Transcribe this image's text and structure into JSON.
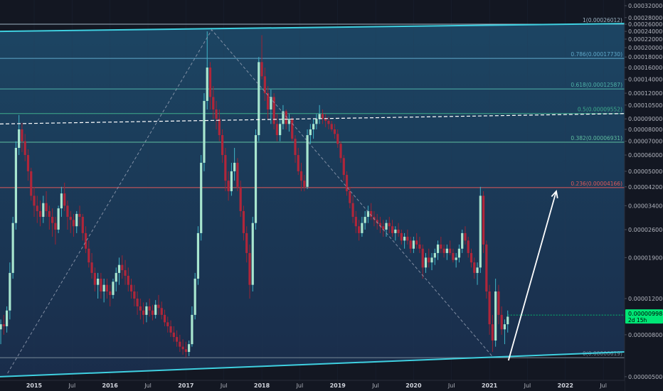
{
  "chart_data": {
    "type": "candlestick",
    "scale": "log",
    "ylim": [
      4.8e-06,
      0.00032
    ],
    "y_ticks": [
      "0.00032000",
      "0.00028000",
      "0.00026000",
      "0.00024000",
      "0.00022000",
      "0.00020000",
      "0.00018000",
      "0.00016000",
      "0.00014000",
      "0.00012000",
      "0.00010500",
      "0.00009000",
      "0.00008000",
      "0.00007000",
      "0.00006000",
      "0.00005000",
      "0.00004200",
      "0.00003400",
      "0.00002600",
      "0.00001900",
      "0.00001200",
      "0.00000800",
      "0.00000500"
    ],
    "x_ticks": [
      {
        "label": "2015",
        "t": 2015.0,
        "year": true
      },
      {
        "label": "Jul",
        "t": 2015.5,
        "year": false
      },
      {
        "label": "2016",
        "t": 2016.0,
        "year": true
      },
      {
        "label": "Jul",
        "t": 2016.5,
        "year": false
      },
      {
        "label": "2017",
        "t": 2017.0,
        "year": true
      },
      {
        "label": "Jul",
        "t": 2017.5,
        "year": false
      },
      {
        "label": "2018",
        "t": 2018.0,
        "year": true
      },
      {
        "label": "Jul",
        "t": 2018.5,
        "year": false
      },
      {
        "label": "2019",
        "t": 2019.0,
        "year": true
      },
      {
        "label": "Jul",
        "t": 2019.5,
        "year": false
      },
      {
        "label": "2020",
        "t": 2020.0,
        "year": true
      },
      {
        "label": "Jul",
        "t": 2020.5,
        "year": false
      },
      {
        "label": "2021",
        "t": 2021.0,
        "year": true
      },
      {
        "label": "Jul",
        "t": 2021.5,
        "year": false
      },
      {
        "label": "2022",
        "t": 2022.0,
        "year": true
      },
      {
        "label": "Jul",
        "t": 2022.5,
        "year": false
      }
    ],
    "xlim": [
      2014.55,
      2022.78
    ],
    "fib_levels": [
      {
        "label": "1(0.00026012)",
        "value": 0.00026012,
        "color": "#9fb4c4"
      },
      {
        "label": "0.786(0.00017730)",
        "value": 0.0001773,
        "color": "#5fa8c9"
      },
      {
        "label": "0.618(0.00012587)",
        "value": 0.00012587,
        "color": "#4fb3a8"
      },
      {
        "label": "0.5(0.00009552)",
        "value": 9.552e-05,
        "color": "#3fae8c"
      },
      {
        "label": "0.382(0.00006931)",
        "value": 6.931e-05,
        "color": "#5fbf9f"
      },
      {
        "label": "0.236(0.00004166)",
        "value": 4.166e-05,
        "color": "#e05a5a"
      },
      {
        "label": "0(0.00000619)",
        "value": 6.19e-06,
        "color": "#7a8a99"
      }
    ],
    "price_badge": {
      "value": "0.00000998",
      "sub": "2d 15h",
      "color": "#00e676"
    },
    "candles": [
      [
        2014.56,
        8.5e-06,
        9.5e-06,
        7.2e-06,
        9e-06
      ],
      [
        2014.6,
        9e-06,
        1e-05,
        8e-06,
        8.8e-06
      ],
      [
        2014.64,
        8.8e-06,
        1.1e-05,
        8.2e-06,
        1.05e-05
      ],
      [
        2014.68,
        1.05e-05,
        1.8e-05,
        9.5e-06,
        1.6e-05
      ],
      [
        2014.72,
        1.6e-05,
        3e-05,
        1.5e-05,
        2.8e-05
      ],
      [
        2014.76,
        2.8e-05,
        7e-05,
        2.6e-05,
        6.5e-05
      ],
      [
        2014.8,
        6.5e-05,
        9.4e-05,
        6e-05,
        8e-05
      ],
      [
        2014.84,
        8e-05,
        8.6e-05,
        6.2e-05,
        7e-05
      ],
      [
        2014.88,
        7e-05,
        7.6e-05,
        5.6e-05,
        6e-05
      ],
      [
        2014.92,
        6e-05,
        6.4e-05,
        4.5e-05,
        5e-05
      ],
      [
        2014.96,
        5e-05,
        5.2e-05,
        3.6e-05,
        3.8e-05
      ],
      [
        2015.0,
        3.8e-05,
        4.2e-05,
        3e-05,
        3.4e-05
      ],
      [
        2015.04,
        3.4e-05,
        3.8e-05,
        2.8e-05,
        3.2e-05
      ],
      [
        2015.08,
        3.2e-05,
        3.6e-05,
        2.7e-05,
        3e-05
      ],
      [
        2015.12,
        3e-05,
        3.8e-05,
        2.8e-05,
        3.5e-05
      ],
      [
        2015.16,
        3.5e-05,
        4e-05,
        3e-05,
        3.2e-05
      ],
      [
        2015.2,
        3.2e-05,
        3.4e-05,
        2.6e-05,
        3e-05
      ],
      [
        2015.24,
        3e-05,
        3.3e-05,
        2.4e-05,
        2.8e-05
      ],
      [
        2015.28,
        2.8e-05,
        3e-05,
        2.2e-05,
        2.6e-05
      ],
      [
        2015.32,
        2.6e-05,
        3.4e-05,
        2.5e-05,
        3.3e-05
      ],
      [
        2015.36,
        3.3e-05,
        4.2e-05,
        3e-05,
        3.9e-05
      ],
      [
        2015.4,
        3.9e-05,
        4.4e-05,
        3.2e-05,
        3.4e-05
      ],
      [
        2015.44,
        3.4e-05,
        3.6e-05,
        2.6e-05,
        3e-05
      ],
      [
        2015.48,
        3e-05,
        3.2e-05,
        2.5e-05,
        2.9e-05
      ],
      [
        2015.52,
        2.9e-05,
        3.1e-05,
        2.4e-05,
        2.7e-05
      ],
      [
        2015.56,
        2.7e-05,
        3.2e-05,
        2.5e-05,
        3.1e-05
      ],
      [
        2015.6,
        3.1e-05,
        3.4e-05,
        2.7e-05,
        3e-05
      ],
      [
        2015.64,
        3e-05,
        3.1e-05,
        2.3e-05,
        2.5e-05
      ],
      [
        2015.68,
        2.5e-05,
        2.7e-05,
        2e-05,
        2.1e-05
      ],
      [
        2015.72,
        2.1e-05,
        2.3e-05,
        1.7e-05,
        1.8e-05
      ],
      [
        2015.76,
        1.8e-05,
        2e-05,
        1.5e-05,
        1.6e-05
      ],
      [
        2015.8,
        1.6e-05,
        1.7e-05,
        1.3e-05,
        1.4e-05
      ],
      [
        2015.84,
        1.4e-05,
        1.6e-05,
        1.2e-05,
        1.5e-05
      ],
      [
        2015.88,
        1.5e-05,
        1.6e-05,
        1.2e-05,
        1.3e-05
      ],
      [
        2015.92,
        1.3e-05,
        1.5e-05,
        1.15e-05,
        1.4e-05
      ],
      [
        2015.96,
        1.4e-05,
        1.5e-05,
        1.2e-05,
        1.3e-05
      ],
      [
        2016.0,
        1.3e-05,
        1.4e-05,
        1.1e-05,
        1.25e-05
      ],
      [
        2016.04,
        1.25e-05,
        1.5e-05,
        1.2e-05,
        1.45e-05
      ],
      [
        2016.08,
        1.45e-05,
        1.7e-05,
        1.3e-05,
        1.6e-05
      ],
      [
        2016.12,
        1.6e-05,
        1.9e-05,
        1.4e-05,
        1.75e-05
      ],
      [
        2016.16,
        1.75e-05,
        1.95e-05,
        1.5e-05,
        1.65e-05
      ],
      [
        2016.2,
        1.65e-05,
        1.85e-05,
        1.4e-05,
        1.55e-05
      ],
      [
        2016.24,
        1.55e-05,
        1.7e-05,
        1.3e-05,
        1.4e-05
      ],
      [
        2016.28,
        1.4e-05,
        1.5e-05,
        1.2e-05,
        1.3e-05
      ],
      [
        2016.32,
        1.3e-05,
        1.4e-05,
        1.1e-05,
        1.2e-05
      ],
      [
        2016.36,
        1.2e-05,
        1.3e-05,
        1e-05,
        1.1e-05
      ],
      [
        2016.4,
        1.1e-05,
        1.2e-05,
        9.5e-06,
        1.05e-05
      ],
      [
        2016.44,
        1.05e-05,
        1.15e-05,
        9e-06,
        1e-05
      ],
      [
        2016.48,
        1e-05,
        1.15e-05,
        9.2e-06,
        1.1e-05
      ],
      [
        2016.52,
        1.1e-05,
        1.2e-05,
        9.8e-06,
        1.05e-05
      ],
      [
        2016.56,
        1.05e-05,
        1.12e-05,
        9.4e-06,
        1e-05
      ],
      [
        2016.6,
        1e-05,
        1.18e-05,
        9.6e-06,
        1.12e-05
      ],
      [
        2016.64,
        1.12e-05,
        1.25e-05,
        1e-05,
        1.08e-05
      ],
      [
        2016.68,
        1.08e-05,
        1.16e-05,
        9.5e-06,
        1e-05
      ],
      [
        2016.72,
        1e-05,
        1.06e-05,
        8.8e-06,
        9.2e-06
      ],
      [
        2016.76,
        9.2e-06,
        9.8e-06,
        8.2e-06,
        8.8e-06
      ],
      [
        2016.8,
        8.8e-06,
        9.4e-06,
        7.8e-06,
        8.2e-06
      ],
      [
        2016.84,
        8.2e-06,
        8.8e-06,
        7.4e-06,
        7.8e-06
      ],
      [
        2016.88,
        7.8e-06,
        8.4e-06,
        7e-06,
        7.4e-06
      ],
      [
        2016.92,
        7.4e-06,
        8e-06,
        6.6e-06,
        7e-06
      ],
      [
        2016.96,
        7e-06,
        7.6e-06,
        6.4e-06,
        6.8e-06
      ],
      [
        2017.0,
        6.8e-06,
        7.4e-06,
        6.2e-06,
        6.6e-06
      ],
      [
        2017.04,
        6.6e-06,
        7.5e-06,
        6.3e-06,
        7.2e-06
      ],
      [
        2017.08,
        7.2e-06,
        1.1e-05,
        7e-06,
        1e-05
      ],
      [
        2017.12,
        1e-05,
        1.6e-05,
        9.5e-06,
        1.5e-05
      ],
      [
        2017.16,
        1.5e-05,
        2.7e-05,
        1.4e-05,
        2.5e-05
      ],
      [
        2017.2,
        2.5e-05,
        6e-05,
        2.3e-05,
        5.5e-05
      ],
      [
        2017.24,
        5.5e-05,
        0.00012,
        5e-05,
        0.00011
      ],
      [
        2017.28,
        0.00011,
        0.00024,
        0.0001,
        0.00016
      ],
      [
        2017.32,
        0.00016,
        0.00017,
        0.0001,
        0.000115
      ],
      [
        2017.36,
        0.000115,
        0.00013,
        9e-05,
        0.0001
      ],
      [
        2017.4,
        0.0001,
        0.00011,
        8e-05,
        9e-05
      ],
      [
        2017.44,
        9e-05,
        0.0001,
        7e-05,
        7.5e-05
      ],
      [
        2017.48,
        7.5e-05,
        8e-05,
        5.5e-05,
        6e-05
      ],
      [
        2017.52,
        6e-05,
        6.5e-05,
        4e-05,
        4.5e-05
      ],
      [
        2017.56,
        4.5e-05,
        5e-05,
        3.6e-05,
        4e-05
      ],
      [
        2017.6,
        4e-05,
        5.5e-05,
        3.8e-05,
        5e-05
      ],
      [
        2017.64,
        5e-05,
        6.5e-05,
        4.5e-05,
        5.5e-05
      ],
      [
        2017.68,
        5.5e-05,
        5.8e-05,
        4e-05,
        4.2e-05
      ],
      [
        2017.72,
        4.2e-05,
        4.5e-05,
        3e-05,
        3.2e-05
      ],
      [
        2017.76,
        3.2e-05,
        3.4e-05,
        2.3e-05,
        2.5e-05
      ],
      [
        2017.8,
        2.5e-05,
        2.7e-05,
        1.8e-05,
        2e-05
      ],
      [
        2017.84,
        2e-05,
        2.2e-05,
        1.2e-05,
        1.4e-05
      ],
      [
        2017.88,
        1.4e-05,
        3e-05,
        1.3e-05,
        2.8e-05
      ],
      [
        2017.92,
        2.8e-05,
        8e-05,
        2.6e-05,
        7.5e-05
      ],
      [
        2017.96,
        7.5e-05,
        0.00018,
        7e-05,
        0.00017
      ],
      [
        2018.0,
        0.00017,
        0.00023,
        0.00014,
        0.000145
      ],
      [
        2018.04,
        0.000145,
        0.00016,
        0.00011,
        0.00012
      ],
      [
        2018.08,
        0.00012,
        0.00013,
        9e-05,
        0.0001
      ],
      [
        2018.12,
        0.0001,
        0.000125,
        8.5e-05,
        0.000115
      ],
      [
        2018.16,
        0.000115,
        0.00012,
        8e-05,
        8.5e-05
      ],
      [
        2018.2,
        8.5e-05,
        9.5e-05,
        7e-05,
        7.5e-05
      ],
      [
        2018.24,
        7.5e-05,
        9e-05,
        7e-05,
        8.5e-05
      ],
      [
        2018.28,
        8.5e-05,
        0.000105,
        8e-05,
        9.8e-05
      ],
      [
        2018.32,
        9.8e-05,
        0.0001,
        8e-05,
        8.5e-05
      ],
      [
        2018.36,
        8.5e-05,
        9.5e-05,
        7.8e-05,
        9e-05
      ],
      [
        2018.4,
        9e-05,
        9.2e-05,
        7e-05,
        7.2e-05
      ],
      [
        2018.44,
        7.2e-05,
        7.5e-05,
        5.5e-05,
        6e-05
      ],
      [
        2018.48,
        6e-05,
        6.5e-05,
        4.8e-05,
        5e-05
      ],
      [
        2018.52,
        5e-05,
        5.5e-05,
        4e-05,
        4.5e-05
      ],
      [
        2018.56,
        4.5e-05,
        4.8e-05,
        4e-05,
        4.2e-05
      ],
      [
        2018.6,
        4.2e-05,
        8e-05,
        4.1e-05,
        7.5e-05
      ],
      [
        2018.64,
        7.5e-05,
        8.5e-05,
        6.8e-05,
        8e-05
      ],
      [
        2018.68,
        8e-05,
        9e-05,
        7.2e-05,
        8.5e-05
      ],
      [
        2018.72,
        8.5e-05,
        9.5e-05,
        8e-05,
        9e-05
      ],
      [
        2018.76,
        9e-05,
        0.000105,
        8.5e-05,
        9.5e-05
      ],
      [
        2018.8,
        9.5e-05,
        0.0001,
        8.5e-05,
        9e-05
      ],
      [
        2018.84,
        9e-05,
        9.5e-05,
        8.2e-05,
        8.8e-05
      ],
      [
        2018.88,
        8.8e-05,
        9.2e-05,
        8e-05,
        8.5e-05
      ],
      [
        2018.92,
        8.5e-05,
        8.8e-05,
        7.8e-05,
        8e-05
      ],
      [
        2018.96,
        8e-05,
        8.5e-05,
        7.2e-05,
        7.6e-05
      ],
      [
        2019.0,
        7.6e-05,
        8e-05,
        6.5e-05,
        6.8e-05
      ],
      [
        2019.04,
        6.8e-05,
        7e-05,
        5.5e-05,
        5.8e-05
      ],
      [
        2019.08,
        5.8e-05,
        6e-05,
        4.5e-05,
        4.8e-05
      ],
      [
        2019.12,
        4.8e-05,
        5e-05,
        3.8e-05,
        4e-05
      ],
      [
        2019.16,
        4e-05,
        4.2e-05,
        3.3e-05,
        3.5e-05
      ],
      [
        2019.2,
        3.5e-05,
        3.8e-05,
        2.8e-05,
        3e-05
      ],
      [
        2019.24,
        3e-05,
        3.2e-05,
        2.5e-05,
        2.7e-05
      ],
      [
        2019.28,
        2.7e-05,
        2.9e-05,
        2.3e-05,
        2.5e-05
      ],
      [
        2019.32,
        2.5e-05,
        3e-05,
        2.4e-05,
        2.8e-05
      ],
      [
        2019.36,
        2.8e-05,
        3.2e-05,
        2.6e-05,
        3e-05
      ],
      [
        2019.4,
        3e-05,
        3.4e-05,
        2.8e-05,
        3.2e-05
      ],
      [
        2019.44,
        3.2e-05,
        3.5e-05,
        2.9e-05,
        3e-05
      ],
      [
        2019.48,
        3e-05,
        3.2e-05,
        2.7e-05,
        2.9e-05
      ],
      [
        2019.52,
        2.9e-05,
        3.1e-05,
        2.6e-05,
        2.8e-05
      ],
      [
        2019.56,
        2.8e-05,
        3e-05,
        2.5e-05,
        2.7e-05
      ],
      [
        2019.6,
        2.7e-05,
        2.9e-05,
        2.4e-05,
        2.6e-05
      ],
      [
        2019.64,
        2.6e-05,
        2.9e-05,
        2.4e-05,
        2.8e-05
      ],
      [
        2019.68,
        2.8e-05,
        3e-05,
        2.5e-05,
        2.7e-05
      ],
      [
        2019.72,
        2.7e-05,
        2.9e-05,
        2.4e-05,
        2.5e-05
      ],
      [
        2019.76,
        2.5e-05,
        2.7e-05,
        2.3e-05,
        2.6e-05
      ],
      [
        2019.8,
        2.6e-05,
        2.8e-05,
        2.4e-05,
        2.5e-05
      ],
      [
        2019.84,
        2.5e-05,
        2.6e-05,
        2.2e-05,
        2.3e-05
      ],
      [
        2019.88,
        2.3e-05,
        2.5e-05,
        2.1e-05,
        2.4e-05
      ],
      [
        2019.92,
        2.4e-05,
        2.6e-05,
        2.2e-05,
        2.3e-05
      ],
      [
        2019.96,
        2.3e-05,
        2.4e-05,
        2e-05,
        2.1e-05
      ],
      [
        2020.0,
        2.1e-05,
        2.4e-05,
        2e-05,
        2.3e-05
      ],
      [
        2020.04,
        2.3e-05,
        2.5e-05,
        2.1e-05,
        2.2e-05
      ],
      [
        2020.08,
        2.2e-05,
        2.4e-05,
        2e-05,
        2.1e-05
      ],
      [
        2020.12,
        2.1e-05,
        2.2e-05,
        1.5e-05,
        1.7e-05
      ],
      [
        2020.16,
        1.7e-05,
        2e-05,
        1.6e-05,
        1.9e-05
      ],
      [
        2020.2,
        1.9e-05,
        2.1e-05,
        1.7e-05,
        1.8e-05
      ],
      [
        2020.24,
        1.8e-05,
        2e-05,
        1.65e-05,
        1.9e-05
      ],
      [
        2020.28,
        1.9e-05,
        2.1e-05,
        1.75e-05,
        2e-05
      ],
      [
        2020.32,
        2e-05,
        2.3e-05,
        1.85e-05,
        2.2e-05
      ],
      [
        2020.36,
        2.2e-05,
        2.4e-05,
        2e-05,
        2.1e-05
      ],
      [
        2020.4,
        2.1e-05,
        2.2e-05,
        1.9e-05,
        2e-05
      ],
      [
        2020.44,
        2e-05,
        2.2e-05,
        1.85e-05,
        2.1e-05
      ],
      [
        2020.48,
        2.1e-05,
        2.3e-05,
        1.95e-05,
        2e-05
      ],
      [
        2020.52,
        2e-05,
        2.1e-05,
        1.8e-05,
        1.85e-05
      ],
      [
        2020.56,
        1.85e-05,
        2e-05,
        1.7e-05,
        1.9e-05
      ],
      [
        2020.6,
        1.9e-05,
        2.2e-05,
        1.8e-05,
        2.1e-05
      ],
      [
        2020.64,
        2.1e-05,
        2.6e-05,
        2e-05,
        2.5e-05
      ],
      [
        2020.68,
        2.5e-05,
        2.7e-05,
        2.2e-05,
        2.3e-05
      ],
      [
        2020.72,
        2.3e-05,
        2.4e-05,
        1.9e-05,
        2e-05
      ],
      [
        2020.76,
        2e-05,
        2.1e-05,
        1.7e-05,
        1.8e-05
      ],
      [
        2020.8,
        1.8e-05,
        1.9e-05,
        1.5e-05,
        1.6e-05
      ],
      [
        2020.84,
        1.6e-05,
        1.8e-05,
        1.4e-05,
        1.7e-05
      ],
      [
        2020.88,
        1.7e-05,
        4.2e-05,
        1.6e-05,
        3.8e-05
      ],
      [
        2020.92,
        3.8e-05,
        4e-05,
        2e-05,
        2.2e-05
      ],
      [
        2020.96,
        2.2e-05,
        2.3e-05,
        1.2e-05,
        1.3e-05
      ],
      [
        2021.0,
        1.3e-05,
        1.4e-05,
        8e-06,
        9e-06
      ],
      [
        2021.04,
        9e-06,
        1e-05,
        6.6e-06,
        7.5e-06
      ],
      [
        2021.08,
        7.5e-06,
        1.5e-05,
        7e-06,
        1.3e-05
      ],
      [
        2021.12,
        1.3e-05,
        1.4e-05,
        9e-06,
        1e-05
      ],
      [
        2021.16,
        1e-05,
        1.1e-05,
        8e-06,
        8.5e-06
      ],
      [
        2021.2,
        8.5e-06,
        9.5e-06,
        7.2e-06,
        9e-06
      ],
      [
        2021.24,
        9e-06,
        1.05e-05,
        8.2e-06,
        9.8e-06
      ]
    ]
  }
}
